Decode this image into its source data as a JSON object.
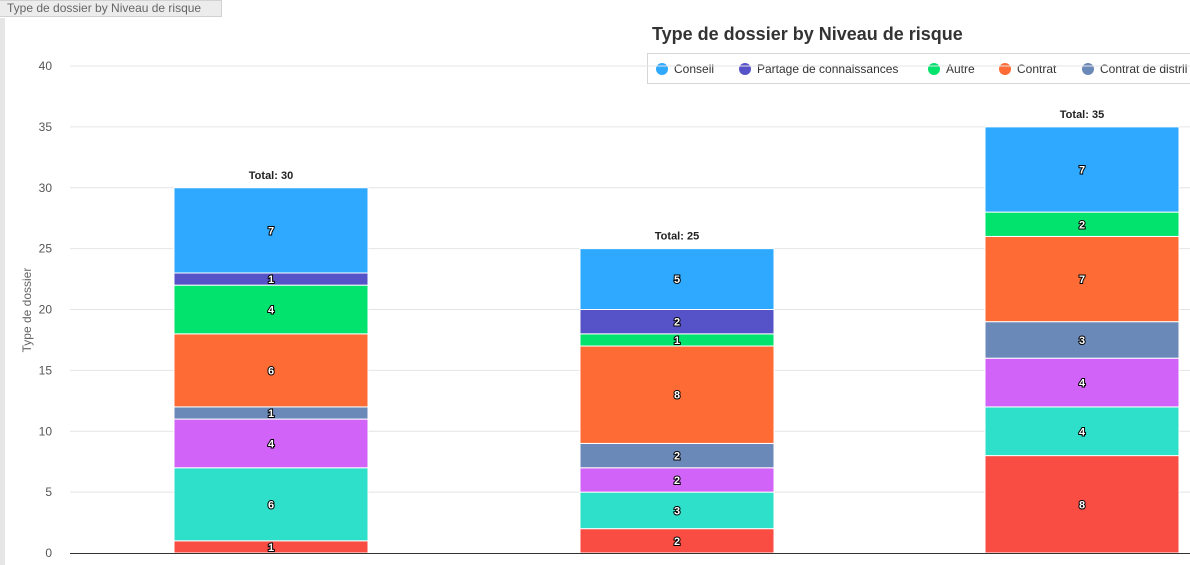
{
  "tab": {
    "label": "Type de dossier by Niveau de risque"
  },
  "chart_data": {
    "type": "bar",
    "stacked": true,
    "title": "Type de dossier by Niveau de risque",
    "xlabel": "",
    "ylabel": "Type de dossier",
    "ylim": [
      0,
      40
    ],
    "yticks": [
      0,
      5,
      10,
      15,
      20,
      25,
      30,
      35,
      40
    ],
    "grid": true,
    "legend_position": "top-right",
    "categories": [
      "",
      "",
      ""
    ],
    "series": [
      {
        "name": "",
        "color": "#f94c43",
        "values": [
          1,
          2,
          8
        ]
      },
      {
        "name": "",
        "color": "#2ee0c9",
        "values": [
          6,
          3,
          4
        ]
      },
      {
        "name": "",
        "color": "#d163f8",
        "values": [
          4,
          2,
          4
        ]
      },
      {
        "name": "Contrat de distril",
        "color": "#6b89b8",
        "values": [
          1,
          2,
          3
        ]
      },
      {
        "name": "Contrat",
        "color": "#ff6b35",
        "values": [
          6,
          8,
          7
        ]
      },
      {
        "name": "Autre",
        "color": "#02e36d",
        "values": [
          4,
          1,
          2
        ]
      },
      {
        "name": "Partage de connaissances",
        "color": "#5652c8",
        "values": [
          1,
          2,
          0
        ]
      },
      {
        "name": "Conseil",
        "color": "#2fa9ff",
        "values": [
          7,
          5,
          7
        ]
      }
    ],
    "totals": [
      "Total: 30",
      "Total: 25",
      "Total: 35"
    ]
  }
}
